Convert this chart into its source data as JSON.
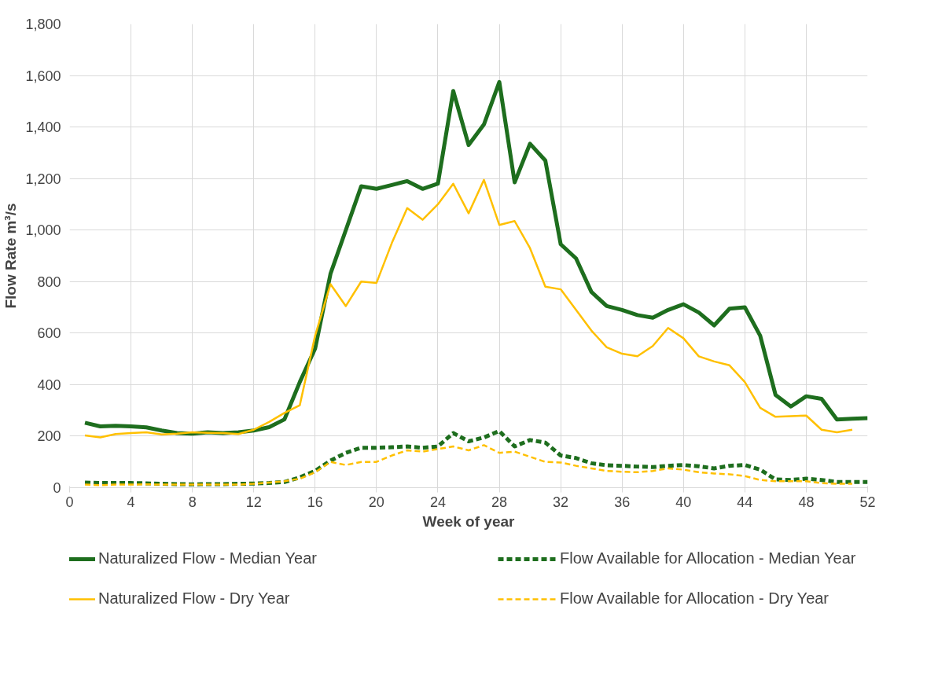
{
  "chart_data": {
    "type": "line",
    "xlabel": "Week of year",
    "ylabel": "Flow Rate m³/s",
    "x": [
      1,
      2,
      3,
      4,
      5,
      6,
      7,
      8,
      9,
      10,
      11,
      12,
      13,
      14,
      15,
      16,
      17,
      18,
      19,
      20,
      21,
      22,
      23,
      24,
      25,
      26,
      27,
      28,
      29,
      30,
      31,
      32,
      33,
      34,
      35,
      36,
      37,
      38,
      39,
      40,
      41,
      42,
      43,
      44,
      45,
      46,
      47,
      48,
      49,
      50,
      51,
      52
    ],
    "series": [
      {
        "name": "Naturalized Flow - Median Year",
        "color": "#1e6e1e",
        "line_style": "solid",
        "values": [
          252,
          238,
          240,
          238,
          234,
          222,
          212,
          210,
          215,
          212,
          215,
          222,
          235,
          265,
          410,
          540,
          830,
          1000,
          1170,
          1160,
          1175,
          1190,
          1160,
          1180,
          1540,
          1330,
          1410,
          1575,
          1185,
          1335,
          1270,
          945,
          890,
          760,
          705,
          690,
          670,
          660,
          690,
          712,
          680,
          630,
          695,
          700,
          590,
          360,
          315,
          355,
          345,
          265,
          268,
          270
        ]
      },
      {
        "name": "Flow Available for Allocation - Median Year",
        "color": "#1e6e1e",
        "line_style": "dashed",
        "values": [
          20,
          18,
          18,
          18,
          17,
          15,
          14,
          13,
          14,
          14,
          15,
          16,
          18,
          22,
          40,
          65,
          105,
          135,
          155,
          155,
          157,
          160,
          155,
          160,
          212,
          180,
          195,
          220,
          160,
          185,
          175,
          125,
          115,
          95,
          87,
          85,
          82,
          80,
          85,
          88,
          83,
          75,
          85,
          88,
          70,
          32,
          30,
          35,
          30,
          22,
          22,
          22
        ]
      },
      {
        "name": "Naturalized Flow - Dry Year",
        "color": "#ffc000",
        "line_style": "solid",
        "values": [
          203,
          195,
          208,
          212,
          215,
          207,
          210,
          215,
          213,
          212,
          208,
          225,
          255,
          290,
          320,
          590,
          790,
          705,
          800,
          795,
          950,
          1085,
          1040,
          1100,
          1180,
          1065,
          1195,
          1020,
          1035,
          930,
          780,
          770,
          690,
          610,
          545,
          520,
          510,
          550,
          620,
          580,
          510,
          490,
          475,
          410,
          310,
          275,
          278,
          280,
          225,
          215,
          225,
          null
        ]
      },
      {
        "name": "Flow Available for Allocation - Dry Year",
        "color": "#ffc000",
        "line_style": "dashed",
        "values": [
          12,
          10,
          12,
          12,
          13,
          12,
          12,
          12,
          12,
          12,
          12,
          15,
          20,
          25,
          35,
          60,
          100,
          88,
          100,
          100,
          125,
          145,
          140,
          150,
          160,
          145,
          165,
          135,
          140,
          120,
          100,
          98,
          85,
          75,
          65,
          62,
          60,
          65,
          75,
          70,
          60,
          55,
          52,
          45,
          30,
          25,
          25,
          25,
          18,
          15,
          15,
          null
        ]
      }
    ],
    "xlim": [
      0,
      52
    ],
    "xticks": [
      0,
      4,
      8,
      12,
      16,
      20,
      24,
      28,
      32,
      36,
      40,
      44,
      48,
      52
    ],
    "ylim": [
      0,
      1800
    ],
    "yticks": [
      0,
      200,
      400,
      600,
      800,
      {
        "value": 1000,
        "label": "1,000"
      },
      {
        "value": 1200,
        "label": "1,200"
      },
      {
        "value": 1400,
        "label": "1,400"
      },
      {
        "value": 1600,
        "label": "1,600"
      },
      {
        "value": 1800,
        "label": "1,800"
      }
    ],
    "grid": true,
    "legend": "bottom",
    "marker": "none"
  }
}
